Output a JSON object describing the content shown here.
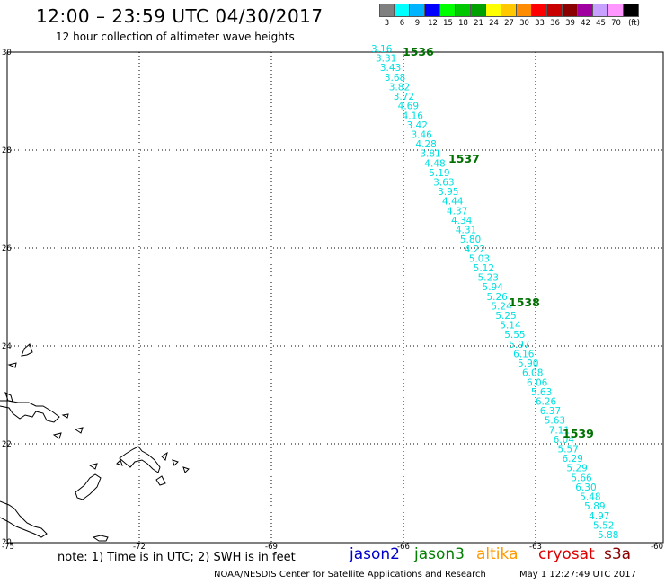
{
  "header": {
    "title": "12:00 – 23:59 UTC 04/30/2017",
    "subtitle": "12 hour collection of altimeter wave heights"
  },
  "legend": {
    "colors": [
      "#808080",
      "#00ffff",
      "#00b4ff",
      "#0000ff",
      "#00ff00",
      "#00c800",
      "#00a000",
      "#ffff00",
      "#ffc800",
      "#ff8c00",
      "#ff0000",
      "#c80000",
      "#8b0000",
      "#a000a0",
      "#c8a0ff",
      "#ff96ff",
      "#000000"
    ],
    "labels": [
      "3",
      "6",
      "9",
      "12",
      "15",
      "18",
      "21",
      "24",
      "27",
      "30",
      "33",
      "36",
      "39",
      "42",
      "45",
      "70",
      "(ft)"
    ]
  },
  "axes": {
    "lat_labels": [
      "30",
      "28",
      "26",
      "24",
      "22",
      "20"
    ],
    "lon_labels": [
      "-75",
      "-72",
      "-69",
      "-66",
      "-63",
      "-60"
    ]
  },
  "track": {
    "color": "#00e0e0",
    "values": [
      "3.16",
      "3.31",
      "3.43",
      "3.68",
      "3.82",
      "3.72",
      "4.69",
      "4.16",
      "3.42",
      "3.46",
      "4.28",
      "3.81",
      "4.48",
      "5.19",
      "3.63",
      "3.95",
      "4.44",
      "4.37",
      "4.34",
      "4.31",
      "5.80",
      "4.22",
      "5.03",
      "5.12",
      "5.23",
      "5.94",
      "5.26",
      "5.24",
      "5.25",
      "5.14",
      "5.55",
      "5.97",
      "6.16",
      "5.90",
      "6.08",
      "6.06",
      "5.63",
      "6.26",
      "6.37",
      "5.63",
      "7.11",
      "6.04",
      "5.57",
      "6.29",
      "5.29",
      "5.66",
      "6.30",
      "5.48",
      "5.89",
      "4.97",
      "5.52",
      "5.88"
    ],
    "times": [
      "1536",
      "1537",
      "1538",
      "1539"
    ],
    "time_color": "#007000"
  },
  "footer": {
    "note": "note: 1) Time is in UTC; 2) SWH is in feet",
    "missions": [
      {
        "name": "jason2",
        "color": "#0000cc"
      },
      {
        "name": "jason3",
        "color": "#008000"
      },
      {
        "name": "altika",
        "color": "#ff9900"
      },
      {
        "name": "cryosat",
        "color": "#dd0000"
      },
      {
        "name": "s3a",
        "color": "#880000"
      }
    ],
    "credit": "NOAA/NESDIS Center for Satellite Applications and Research",
    "timestamp": "May  1 12:27:49 UTC 2017"
  }
}
